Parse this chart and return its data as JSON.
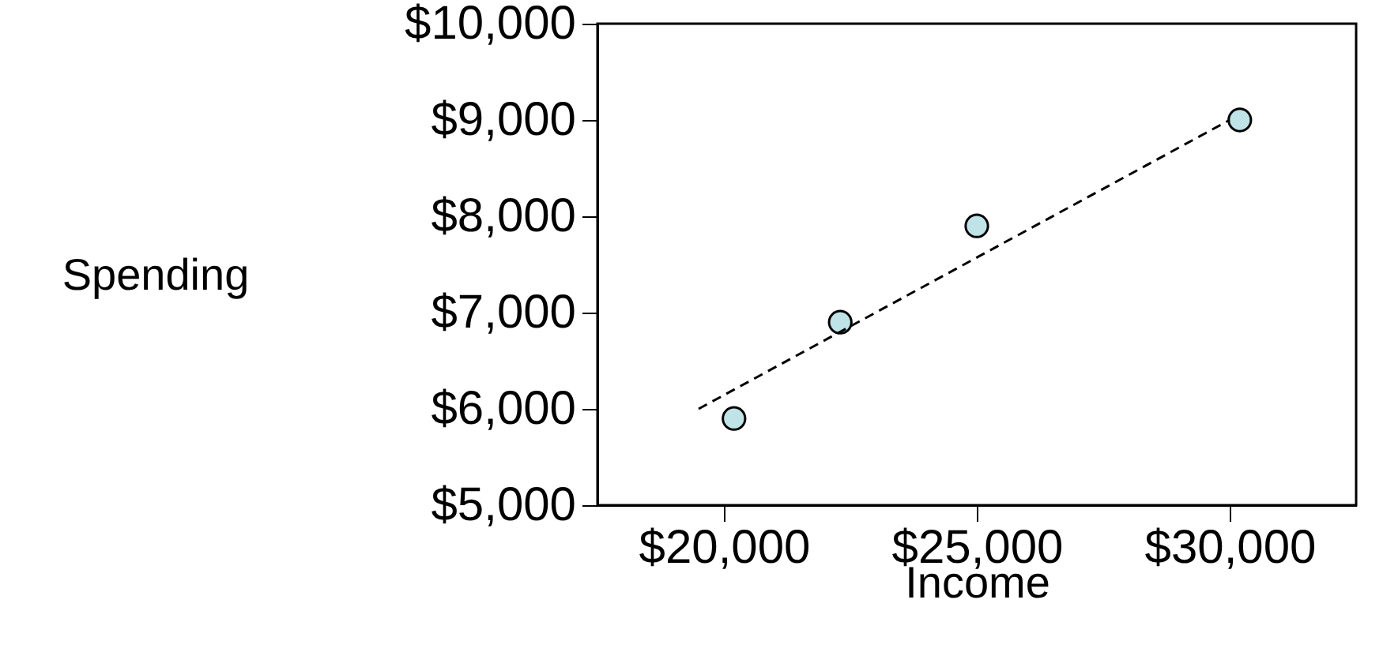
{
  "chart_data": {
    "type": "scatter",
    "xlabel": "Income",
    "ylabel": "Spending",
    "xlim": [
      17500,
      32500
    ],
    "xticks": [
      {
        "value": 20000,
        "label": "$20,000"
      },
      {
        "value": 25000,
        "label": "$25,000"
      },
      {
        "value": 30000,
        "label": "$30,000"
      }
    ],
    "ylim": [
      5000,
      10000
    ],
    "yticks": [
      {
        "value": 5000,
        "label": "$5,000"
      },
      {
        "value": 6000,
        "label": "$6,000"
      },
      {
        "value": 7000,
        "label": "$7,000"
      },
      {
        "value": 8000,
        "label": "$8,000"
      },
      {
        "value": 9000,
        "label": "$9,000"
      },
      {
        "value": 10000,
        "label": "$10,000"
      }
    ],
    "grid": false,
    "series": [
      {
        "marker": "circle",
        "color": "#bfe3e6",
        "x": [
          20200,
          22300,
          25000,
          30200
        ],
        "values": [
          5900,
          6900,
          7900,
          9000
        ]
      },
      {
        "type": "line",
        "color": "#000000",
        "line_style": "dashed",
        "x": [
          19500,
          30000
        ],
        "values": [
          6000,
          9000
        ]
      }
    ]
  }
}
